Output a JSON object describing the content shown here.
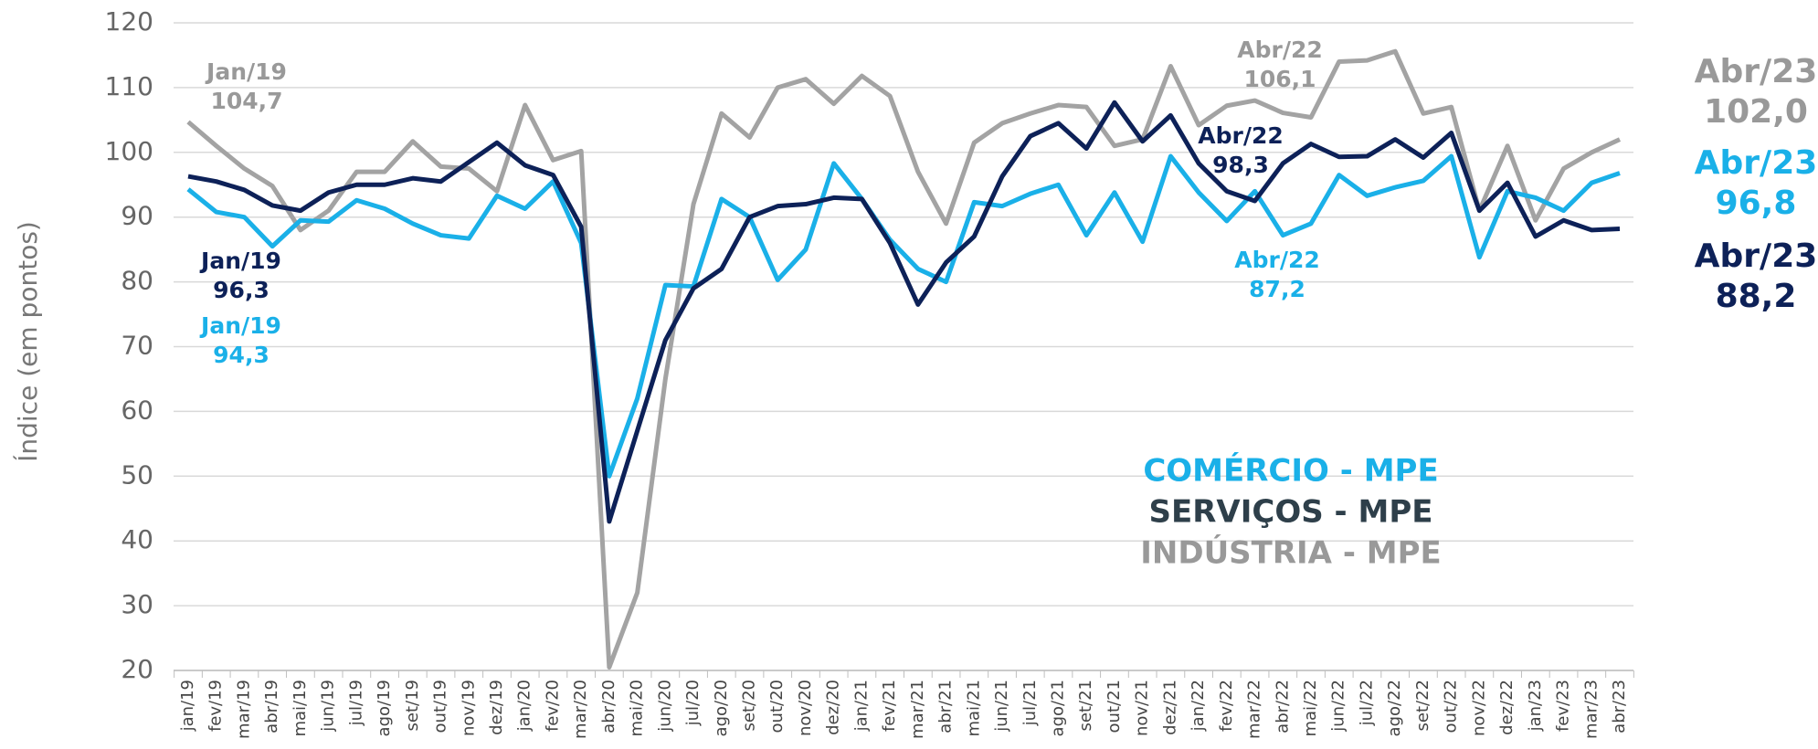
{
  "chart_data": {
    "type": "line",
    "y_label": "Índice (em pontos)",
    "categories": [
      "jan/19",
      "fev/19",
      "mar/19",
      "abr/19",
      "mai/19",
      "jun/19",
      "jul/19",
      "ago/19",
      "set/19",
      "out/19",
      "nov/19",
      "dez/19",
      "jan/20",
      "fev/20",
      "mar/20",
      "abr/20",
      "mai/20",
      "jun/20",
      "jul/20",
      "ago/20",
      "set/20",
      "out/20",
      "nov/20",
      "dez/20",
      "jan/21",
      "fev/21",
      "mar/21",
      "abr/21",
      "mai/21",
      "jun/21",
      "jul/21",
      "ago/21",
      "set/21",
      "out/21",
      "nov/21",
      "dez/21",
      "jan/22",
      "fev/22",
      "mar/22",
      "abr/22",
      "mai/22",
      "jun/22",
      "jul/22",
      "ago/22",
      "set/22",
      "out/22",
      "nov/22",
      "dez/22",
      "jan/23",
      "fev/23",
      "mar/23",
      "abr/23"
    ],
    "series": [
      {
        "name": "INDÚSTRIA - MPE",
        "color": "#a3a3a3",
        "values": [
          104.7,
          101,
          97.5,
          94.8,
          88,
          91,
          97,
          97,
          101.7,
          97.8,
          97.5,
          94,
          107.3,
          98.8,
          100.2,
          20.5,
          32,
          65,
          92,
          106,
          102.3,
          110,
          111.3,
          107.5,
          111.8,
          108.7,
          97,
          89,
          101.5,
          104.5,
          106,
          107.3,
          107,
          101,
          102,
          113.3,
          104.2,
          107.2,
          108,
          106.1,
          105.4,
          114,
          114.2,
          115.6,
          106,
          107,
          91,
          101,
          89.5,
          97.5,
          100,
          102.0
        ]
      },
      {
        "name": "COMÉRCIO - MPE",
        "color": "#1ab0e8",
        "values": [
          94.3,
          90.8,
          90,
          85.5,
          89.5,
          89.3,
          92.6,
          91.3,
          89,
          87.2,
          86.7,
          93.3,
          91.3,
          95.5,
          86,
          50,
          62,
          79.5,
          79.3,
          92.8,
          90,
          80.3,
          85,
          98.3,
          92.8,
          86.5,
          82,
          80,
          92.3,
          91.7,
          93.6,
          95,
          87.2,
          93.8,
          86.2,
          99.4,
          93.8,
          89.4,
          94,
          87.2,
          89,
          96.5,
          93.3,
          94.6,
          95.6,
          99.4,
          83.8,
          94,
          93,
          91,
          95.3,
          96.8
        ]
      },
      {
        "name": "SERVIÇOS - MPE",
        "color": "#0d2158",
        "values": [
          96.3,
          95.5,
          94.2,
          91.8,
          91,
          93.8,
          95,
          95,
          96,
          95.5,
          98.5,
          101.5,
          98,
          96.5,
          88.5,
          43,
          57,
          71,
          79,
          82,
          90,
          91.7,
          92,
          93,
          92.8,
          86,
          76.5,
          83,
          87,
          96.3,
          102.5,
          104.5,
          100.6,
          107.7,
          101.7,
          105.7,
          98.3,
          94,
          92.5,
          98.3,
          101.3,
          99.3,
          99.4,
          102,
          99.2,
          103,
          91,
          95.3,
          87,
          89.5,
          88,
          88.2
        ]
      }
    ],
    "legend_order": [
      1,
      2,
      0
    ],
    "annotations": [
      {
        "lines": [
          "Jan/19",
          "104,7"
        ],
        "color": "#999999"
      },
      {
        "lines": [
          "Jan/19",
          "96,3"
        ],
        "color": "#0d2158"
      },
      {
        "lines": [
          "Jan/19",
          "94,3"
        ],
        "color": "#1ab0e8"
      },
      {
        "lines": [
          "Abr/22",
          "106,1"
        ],
        "color": "#999999"
      },
      {
        "lines": [
          "Abr/22",
          "98,3"
        ],
        "color": "#0d2158"
      },
      {
        "lines": [
          "Abr/22",
          "87,2"
        ],
        "color": "#1ab0e8"
      },
      {
        "lines": [
          "Abr/23",
          "102,0"
        ],
        "color": "#999999"
      },
      {
        "lines": [
          "Abr/23",
          "96,8"
        ],
        "color": "#1ab0e8"
      },
      {
        "lines": [
          "Abr/23",
          "88,2"
        ],
        "color": "#0d2158"
      }
    ],
    "ylim": [
      20,
      120
    ],
    "yticks": [
      20,
      30,
      40,
      50,
      60,
      70,
      80,
      90,
      100,
      110,
      120
    ],
    "grid": true
  }
}
